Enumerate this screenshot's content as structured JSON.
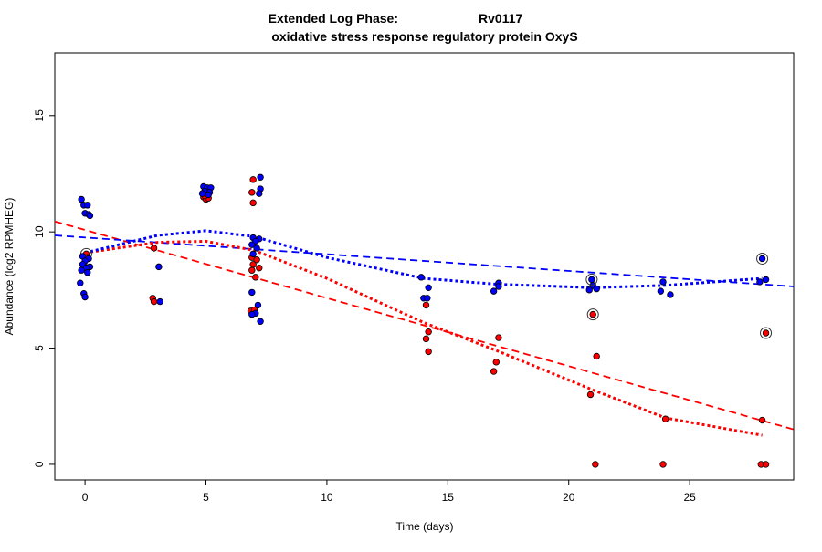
{
  "chart_data": {
    "type": "scatter",
    "title_line1_left": "Extended Log Phase:",
    "title_line1_right": "Rv0117",
    "title_line2": "oxidative stress response regulatory protein OxyS",
    "xlabel": "Time  (days)",
    "ylabel": "Abundance  (log2 RPMHEG)",
    "xlim": [
      -1.25,
      29.3
    ],
    "ylim": [
      -0.67,
      17.7
    ],
    "xticks": [
      0,
      5,
      10,
      15,
      20,
      25
    ],
    "yticks": [
      0,
      5,
      10,
      15
    ],
    "grid": false,
    "colors": {
      "red": "#ff0000",
      "blue": "#0000ff",
      "marker_edge": "#000000"
    },
    "series": [
      {
        "color": "red",
        "points": [
          [
            0.05,
            9.05
          ],
          [
            0.1,
            8.9
          ],
          [
            -0.05,
            8.6
          ],
          [
            2.85,
            9.3
          ],
          [
            2.8,
            7.15
          ],
          [
            2.85,
            7.0
          ],
          [
            4.9,
            11.5
          ],
          [
            5.0,
            11.4
          ],
          [
            5.1,
            11.45
          ],
          [
            4.95,
            11.55
          ],
          [
            6.95,
            12.25
          ],
          [
            6.9,
            11.7
          ],
          [
            6.95,
            11.25
          ],
          [
            6.9,
            8.9
          ],
          [
            7.1,
            8.8
          ],
          [
            6.95,
            8.6
          ],
          [
            7.2,
            8.45
          ],
          [
            6.9,
            8.35
          ],
          [
            7.05,
            8.05
          ],
          [
            6.85,
            6.6
          ],
          [
            7.0,
            6.65
          ],
          [
            14.1,
            6.85
          ],
          [
            14.2,
            5.7
          ],
          [
            14.1,
            5.4
          ],
          [
            14.2,
            4.85
          ],
          [
            17.1,
            5.45
          ],
          [
            17.0,
            4.4
          ],
          [
            16.9,
            4.0
          ],
          [
            21.0,
            6.45
          ],
          [
            21.15,
            4.65
          ],
          [
            20.9,
            3.0
          ],
          [
            21.1,
            0.0
          ],
          [
            24.0,
            1.95
          ],
          [
            23.9,
            0.0
          ],
          [
            28.15,
            5.65
          ],
          [
            28.0,
            1.9
          ],
          [
            27.95,
            0.0
          ],
          [
            28.15,
            0.0
          ]
        ],
        "circled": [
          [
            0.05,
            9.05
          ],
          [
            21.0,
            6.45
          ],
          [
            28.15,
            5.65
          ]
        ]
      },
      {
        "color": "blue",
        "points": [
          [
            -0.15,
            11.4
          ],
          [
            -0.05,
            11.15
          ],
          [
            0.1,
            11.15
          ],
          [
            0.0,
            10.8
          ],
          [
            0.15,
            10.75
          ],
          [
            0.2,
            10.7
          ],
          [
            -0.1,
            8.95
          ],
          [
            0.15,
            8.85
          ],
          [
            0.0,
            8.75
          ],
          [
            -0.1,
            8.6
          ],
          [
            0.2,
            8.5
          ],
          [
            0.05,
            8.45
          ],
          [
            -0.15,
            8.35
          ],
          [
            0.1,
            8.25
          ],
          [
            -0.2,
            7.8
          ],
          [
            -0.05,
            7.35
          ],
          [
            0.0,
            7.2
          ],
          [
            3.05,
            8.5
          ],
          [
            3.1,
            7.0
          ],
          [
            4.9,
            11.95
          ],
          [
            5.05,
            11.9
          ],
          [
            5.2,
            11.9
          ],
          [
            4.95,
            11.75
          ],
          [
            5.15,
            11.7
          ],
          [
            4.85,
            11.65
          ],
          [
            5.1,
            11.6
          ],
          [
            7.25,
            12.35
          ],
          [
            7.25,
            11.85
          ],
          [
            7.2,
            11.65
          ],
          [
            6.95,
            9.75
          ],
          [
            7.2,
            9.7
          ],
          [
            7.05,
            9.6
          ],
          [
            6.9,
            9.45
          ],
          [
            7.1,
            9.3
          ],
          [
            6.95,
            9.05
          ],
          [
            6.9,
            7.4
          ],
          [
            7.15,
            6.85
          ],
          [
            7.05,
            6.5
          ],
          [
            6.9,
            6.45
          ],
          [
            7.25,
            6.15
          ],
          [
            13.9,
            8.05
          ],
          [
            14.2,
            7.6
          ],
          [
            14.0,
            7.15
          ],
          [
            14.15,
            7.15
          ],
          [
            16.9,
            7.45
          ],
          [
            17.1,
            7.8
          ],
          [
            17.1,
            7.65
          ],
          [
            20.95,
            7.95
          ],
          [
            21.0,
            7.7
          ],
          [
            20.85,
            7.5
          ],
          [
            21.15,
            7.55
          ],
          [
            23.9,
            7.85
          ],
          [
            23.8,
            7.45
          ],
          [
            24.2,
            7.3
          ],
          [
            28.0,
            8.85
          ],
          [
            28.15,
            7.95
          ],
          [
            27.9,
            7.85
          ]
        ],
        "circled": [
          [
            20.95,
            7.95
          ],
          [
            28.0,
            8.85
          ]
        ]
      }
    ],
    "trend_lines": [
      {
        "color": "red",
        "style": "dashed",
        "kind": "linear",
        "points": [
          [
            -1.25,
            10.45
          ],
          [
            29.3,
            1.5
          ]
        ]
      },
      {
        "color": "blue",
        "style": "dashed",
        "kind": "linear",
        "points": [
          [
            -1.25,
            9.85
          ],
          [
            29.3,
            7.65
          ]
        ]
      },
      {
        "color": "red",
        "style": "dotted",
        "kind": "smooth",
        "points": [
          [
            0,
            9.1
          ],
          [
            3,
            9.55
          ],
          [
            5,
            9.6
          ],
          [
            7,
            9.2
          ],
          [
            10,
            8.0
          ],
          [
            14,
            6.1
          ],
          [
            17,
            4.9
          ],
          [
            21,
            3.2
          ],
          [
            24,
            2.0
          ],
          [
            28,
            1.25
          ]
        ]
      },
      {
        "color": "blue",
        "style": "dotted",
        "kind": "smooth",
        "points": [
          [
            0,
            9.1
          ],
          [
            3,
            9.85
          ],
          [
            5,
            10.05
          ],
          [
            7,
            9.8
          ],
          [
            10,
            8.9
          ],
          [
            14,
            8.0
          ],
          [
            17,
            7.75
          ],
          [
            21,
            7.6
          ],
          [
            24,
            7.7
          ],
          [
            28,
            8.0
          ]
        ]
      }
    ]
  }
}
